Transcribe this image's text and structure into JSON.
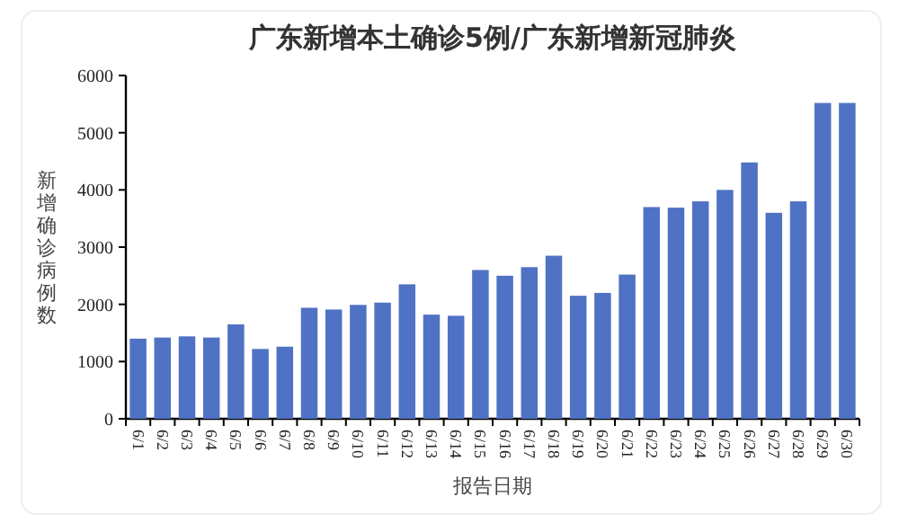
{
  "chart_data": {
    "type": "bar",
    "title": "广东新增本土确诊5例/广东新增新冠肺炎",
    "xlabel": "报告日期",
    "ylabel": "新增确诊病例数",
    "categories": [
      "6/1",
      "6/2",
      "6/3",
      "6/4",
      "6/5",
      "6/6",
      "6/7",
      "6/8",
      "6/9",
      "6/10",
      "6/11",
      "6/12",
      "6/13",
      "6/14",
      "6/15",
      "6/16",
      "6/17",
      "6/18",
      "6/19",
      "6/20",
      "6/21",
      "6/22",
      "6/23",
      "6/24",
      "6/25",
      "6/26",
      "6/27",
      "6/28",
      "6/29",
      "6/30"
    ],
    "values": [
      1400,
      1420,
      1440,
      1420,
      1650,
      1220,
      1260,
      1940,
      1910,
      1990,
      2030,
      2350,
      1820,
      1800,
      2600,
      2500,
      2650,
      2850,
      2150,
      2200,
      2520,
      3700,
      3690,
      3800,
      4000,
      4480,
      3600,
      3800,
      5520,
      5520
    ],
    "color": "#4f72c4",
    "ylim": [
      0,
      6000
    ],
    "yticks": [
      0,
      1000,
      2000,
      3000,
      4000,
      5000,
      6000
    ]
  }
}
